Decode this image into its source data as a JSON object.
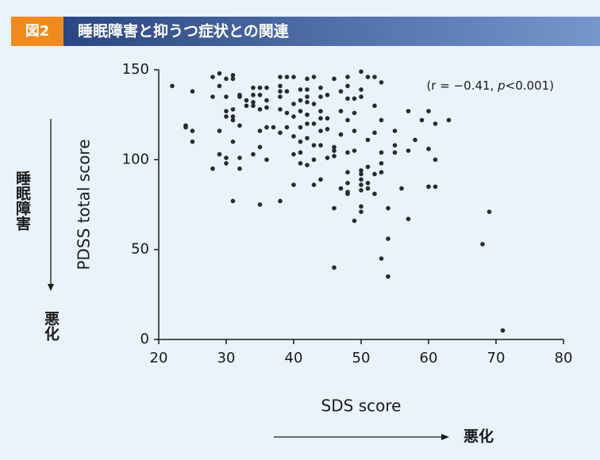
{
  "chart_data": {
    "type": "scatter",
    "figure_label": "図2",
    "title": "睡眠障害と抑うつ症状との関連",
    "xlabel": "SDS score",
    "ylabel": "PDSS total score",
    "y_side_label": "睡眠障害",
    "y_worse_label": "悪化",
    "x_worse_label": "悪化",
    "annotation": [
      "(r = −0.41, ",
      "p",
      "<0.001)"
    ],
    "color": "#2a2a2a",
    "xlim": [
      20,
      80
    ],
    "xticks": [
      20,
      30,
      40,
      50,
      60,
      70,
      80
    ],
    "ylim": [
      0,
      150
    ],
    "yticks": [
      0,
      50,
      100,
      150
    ],
    "x": [
      22,
      24,
      24,
      25,
      25,
      25,
      28,
      28,
      28,
      29,
      29,
      29,
      29,
      30,
      30,
      30,
      30,
      30,
      30,
      31,
      31,
      31,
      31,
      31,
      31,
      31,
      32,
      32,
      32,
      32,
      32,
      33,
      33,
      34,
      34,
      34,
      34,
      34,
      35,
      35,
      35,
      35,
      35,
      35,
      36,
      36,
      36,
      36,
      36,
      37,
      38,
      38,
      38,
      38,
      38,
      38,
      38,
      39,
      39,
      39,
      39,
      40,
      40,
      40,
      40,
      40,
      40,
      41,
      41,
      41,
      41,
      41,
      41,
      41,
      42,
      42,
      42,
      42,
      42,
      42,
      42,
      42,
      43,
      43,
      43,
      43,
      43,
      43,
      44,
      44,
      44,
      44,
      44,
      44,
      44,
      45,
      45,
      45,
      45,
      46,
      46,
      46,
      46,
      46,
      46,
      47,
      47,
      47,
      47,
      48,
      48,
      48,
      48,
      48,
      48,
      48,
      48,
      48,
      49,
      49,
      49,
      49,
      49,
      50,
      50,
      50,
      50,
      50,
      50,
      50,
      50,
      50,
      50,
      51,
      51,
      51,
      51,
      51,
      52,
      52,
      52,
      52,
      52,
      53,
      53,
      53,
      53,
      53,
      53,
      54,
      54,
      54,
      55,
      55,
      55,
      56,
      57,
      57,
      57,
      58,
      59,
      60,
      60,
      60,
      61,
      61,
      61,
      63,
      68,
      69,
      71
    ],
    "y": [
      141,
      119,
      118,
      138,
      116,
      110,
      146,
      95,
      135,
      148,
      141,
      116,
      103,
      145,
      135,
      127,
      124,
      101,
      98,
      147,
      145,
      128,
      124,
      122,
      110,
      77,
      136,
      135,
      119,
      101,
      95,
      133,
      130,
      140,
      136,
      132,
      130,
      103,
      140,
      136,
      128,
      116,
      107,
      75,
      140,
      133,
      129,
      118,
      100,
      118,
      146,
      141,
      138,
      135,
      128,
      115,
      77,
      146,
      138,
      126,
      118,
      146,
      131,
      124,
      113,
      103,
      86,
      139,
      133,
      127,
      118,
      110,
      104,
      98,
      145,
      139,
      135,
      132,
      125,
      120,
      112,
      97,
      146,
      131,
      120,
      108,
      100,
      86,
      140,
      135,
      127,
      123,
      116,
      108,
      89,
      136,
      123,
      117,
      101,
      145,
      107,
      105,
      102,
      73,
      40,
      138,
      127,
      114,
      84,
      146,
      141,
      134,
      122,
      104,
      93,
      87,
      82,
      81,
      134,
      126,
      116,
      105,
      66,
      149,
      139,
      135,
      94,
      92,
      89,
      86,
      83,
      74,
      71,
      146,
      111,
      96,
      87,
      84,
      146,
      130,
      115,
      92,
      81,
      143,
      122,
      104,
      98,
      93,
      45,
      73,
      56,
      35,
      116,
      108,
      104,
      84,
      127,
      105,
      67,
      111,
      122,
      127,
      106,
      85,
      120,
      100,
      85,
      122,
      53,
      71,
      5
    ]
  }
}
